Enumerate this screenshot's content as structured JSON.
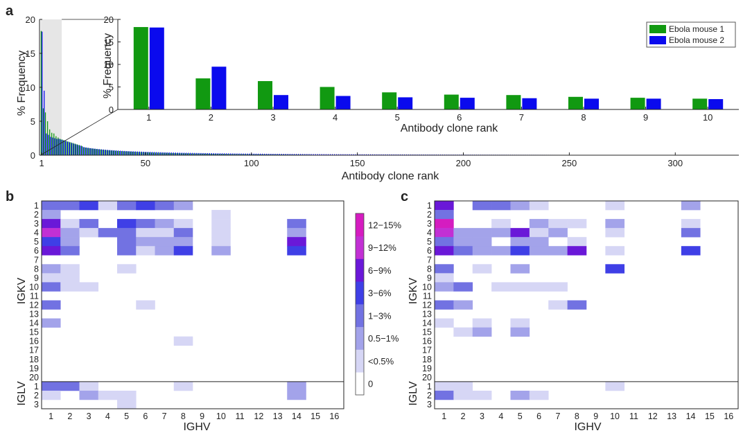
{
  "panel_labels": {
    "a": "a",
    "b": "b",
    "c": "c"
  },
  "chart_data": [
    {
      "id": "a-main",
      "type": "bar",
      "xlabel": "Antibody clone rank",
      "ylabel": "% Frequency",
      "xlim": [
        0,
        330
      ],
      "ylim": [
        0,
        20
      ],
      "xticks": [
        1,
        50,
        100,
        150,
        200,
        250,
        300
      ],
      "yticks": [
        0,
        5,
        10,
        15,
        20
      ],
      "highlight_range": [
        1,
        10
      ],
      "series": [
        {
          "name": "Ebola mouse 1",
          "color": "#119911",
          "max_rank": 128,
          "values": [
            18.3,
            6.9,
            6.3,
            5.0,
            3.8,
            3.3,
            3.2,
            2.8,
            2.6,
            2.4,
            2.3,
            2.2,
            2.1,
            2.0,
            1.9,
            1.8,
            1.7,
            1.6,
            1.5,
            1.4
          ]
        },
        {
          "name": "Ebola mouse 2",
          "color": "#0a0aee",
          "max_rank": 320,
          "values": [
            18.2,
            9.5,
            3.2,
            3.0,
            2.7,
            2.6,
            2.5,
            2.4,
            2.4,
            2.3,
            2.2,
            2.1,
            2.0,
            1.9,
            1.8,
            1.7,
            1.6,
            1.5,
            1.4,
            1.3
          ]
        }
      ]
    },
    {
      "id": "a-inset",
      "type": "bar",
      "xlabel": "Antibody clone rank",
      "ylabel": "% Frequency",
      "categories": [
        "1",
        "2",
        "3",
        "4",
        "5",
        "6",
        "7",
        "8",
        "9",
        "10"
      ],
      "ylim": [
        0,
        20
      ],
      "yticks": [
        0,
        5,
        10,
        15,
        20
      ],
      "legend_position": "top-right",
      "series": [
        {
          "name": "Ebola mouse 1",
          "color": "#119911",
          "values": [
            18.3,
            6.9,
            6.3,
            5.0,
            3.8,
            3.3,
            3.2,
            2.8,
            2.6,
            2.4
          ]
        },
        {
          "name": "Ebola mouse 2",
          "color": "#0a0aee",
          "values": [
            18.2,
            9.5,
            3.2,
            3.0,
            2.7,
            2.6,
            2.5,
            2.4,
            2.4,
            2.3
          ]
        }
      ]
    },
    {
      "id": "b",
      "type": "heatmap",
      "xlabel": "IGHV",
      "x_categories": [
        "1",
        "2",
        "3",
        "4",
        "5",
        "6",
        "7",
        "8",
        "9",
        "10",
        "11",
        "12",
        "13",
        "14",
        "15",
        "16"
      ],
      "row_groups": [
        {
          "label": "IGKV",
          "rows": [
            "1",
            "2",
            "3",
            "4",
            "5",
            "6",
            "7",
            "8",
            "9",
            "10",
            "11",
            "12",
            "13",
            "14",
            "15",
            "16",
            "17",
            "18",
            "19",
            "20"
          ]
        },
        {
          "label": "IGLV",
          "rows": [
            "1",
            "2",
            "3"
          ]
        }
      ],
      "bins": [
        "0",
        "<0.5%",
        "0.5−1%",
        "1−3%",
        "3−6%",
        "6−9%",
        "9−12%",
        "12−15%"
      ],
      "bin_colors": [
        "#ffffff",
        "#d6d6f5",
        "#a3a3ea",
        "#7272e2",
        "#3f3fe6",
        "#6a18d8",
        "#c230d4",
        "#d51cc0"
      ],
      "cells": [
        [
          3,
          3,
          4,
          1,
          3,
          4,
          3,
          2,
          0,
          0,
          0,
          0,
          0,
          0,
          0,
          0
        ],
        [
          2,
          0,
          0,
          0,
          0,
          0,
          0,
          0,
          0,
          1,
          0,
          0,
          0,
          0,
          0,
          0
        ],
        [
          5,
          1,
          3,
          0,
          4,
          3,
          2,
          1,
          0,
          1,
          0,
          0,
          0,
          3,
          0,
          0
        ],
        [
          6,
          2,
          1,
          3,
          3,
          1,
          1,
          3,
          0,
          1,
          0,
          0,
          0,
          2,
          0,
          0
        ],
        [
          4,
          2,
          0,
          0,
          3,
          2,
          2,
          2,
          0,
          1,
          0,
          0,
          0,
          5,
          0,
          0
        ],
        [
          5,
          3,
          0,
          0,
          3,
          1,
          2,
          4,
          0,
          2,
          0,
          0,
          0,
          4,
          0,
          0
        ],
        [
          0,
          0,
          0,
          0,
          0,
          0,
          0,
          0,
          0,
          0,
          0,
          0,
          0,
          0,
          0,
          0
        ],
        [
          2,
          1,
          0,
          0,
          1,
          0,
          0,
          0,
          0,
          0,
          0,
          0,
          0,
          0,
          0,
          0
        ],
        [
          1,
          1,
          0,
          0,
          0,
          0,
          0,
          0,
          0,
          0,
          0,
          0,
          0,
          0,
          0,
          0
        ],
        [
          3,
          1,
          1,
          0,
          0,
          0,
          0,
          0,
          0,
          0,
          0,
          0,
          0,
          0,
          0,
          0
        ],
        [
          0,
          0,
          0,
          0,
          0,
          0,
          0,
          0,
          0,
          0,
          0,
          0,
          0,
          0,
          0,
          0
        ],
        [
          3,
          0,
          0,
          0,
          0,
          1,
          0,
          0,
          0,
          0,
          0,
          0,
          0,
          0,
          0,
          0
        ],
        [
          0,
          0,
          0,
          0,
          0,
          0,
          0,
          0,
          0,
          0,
          0,
          0,
          0,
          0,
          0,
          0
        ],
        [
          2,
          0,
          0,
          0,
          0,
          0,
          0,
          0,
          0,
          0,
          0,
          0,
          0,
          0,
          0,
          0
        ],
        [
          0,
          0,
          0,
          0,
          0,
          0,
          0,
          0,
          0,
          0,
          0,
          0,
          0,
          0,
          0,
          0
        ],
        [
          0,
          0,
          0,
          0,
          0,
          0,
          0,
          1,
          0,
          0,
          0,
          0,
          0,
          0,
          0,
          0
        ],
        [
          0,
          0,
          0,
          0,
          0,
          0,
          0,
          0,
          0,
          0,
          0,
          0,
          0,
          0,
          0,
          0
        ],
        [
          0,
          0,
          0,
          0,
          0,
          0,
          0,
          0,
          0,
          0,
          0,
          0,
          0,
          0,
          0,
          0
        ],
        [
          0,
          0,
          0,
          0,
          0,
          0,
          0,
          0,
          0,
          0,
          0,
          0,
          0,
          0,
          0,
          0
        ],
        [
          0,
          0,
          0,
          0,
          0,
          0,
          0,
          0,
          0,
          0,
          0,
          0,
          0,
          0,
          0,
          0
        ],
        [
          3,
          3,
          1,
          0,
          0,
          0,
          0,
          1,
          0,
          0,
          0,
          0,
          0,
          2,
          0,
          0
        ],
        [
          1,
          0,
          2,
          1,
          1,
          0,
          0,
          0,
          0,
          0,
          0,
          0,
          0,
          2,
          0,
          0
        ],
        [
          0,
          0,
          0,
          0,
          1,
          0,
          0,
          0,
          0,
          0,
          0,
          0,
          0,
          0,
          0,
          0
        ]
      ]
    },
    {
      "id": "c",
      "type": "heatmap",
      "xlabel": "IGHV",
      "x_categories": [
        "1",
        "2",
        "3",
        "4",
        "5",
        "6",
        "7",
        "8",
        "9",
        "10",
        "11",
        "12",
        "13",
        "14",
        "15",
        "16"
      ],
      "row_groups": [
        {
          "label": "IGKV",
          "rows": [
            "1",
            "2",
            "3",
            "4",
            "5",
            "6",
            "7",
            "8",
            "9",
            "10",
            "11",
            "12",
            "13",
            "14",
            "15",
            "16",
            "17",
            "18",
            "19",
            "20"
          ]
        },
        {
          "label": "IGLV",
          "rows": [
            "1",
            "2",
            "3"
          ]
        }
      ],
      "bins": [
        "0",
        "<0.5%",
        "0.5−1%",
        "1−3%",
        "3−6%",
        "6−9%",
        "9−12%",
        "12−15%"
      ],
      "bin_colors": [
        "#ffffff",
        "#d6d6f5",
        "#a3a3ea",
        "#7272e2",
        "#3f3fe6",
        "#6a18d8",
        "#c230d4",
        "#d51cc0"
      ],
      "cells": [
        [
          5,
          0,
          3,
          3,
          2,
          1,
          0,
          0,
          0,
          1,
          0,
          0,
          0,
          2,
          0,
          0
        ],
        [
          3,
          0,
          0,
          0,
          0,
          0,
          0,
          0,
          0,
          0,
          0,
          0,
          0,
          0,
          0,
          0
        ],
        [
          7,
          0,
          0,
          1,
          0,
          2,
          1,
          1,
          0,
          2,
          0,
          0,
          0,
          1,
          0,
          0
        ],
        [
          6,
          2,
          2,
          2,
          5,
          1,
          2,
          0,
          0,
          1,
          0,
          0,
          0,
          3,
          0,
          0
        ],
        [
          3,
          2,
          2,
          0,
          2,
          2,
          0,
          1,
          0,
          0,
          0,
          0,
          0,
          0,
          0,
          0
        ],
        [
          5,
          3,
          2,
          2,
          4,
          2,
          2,
          5,
          0,
          1,
          0,
          0,
          0,
          4,
          0,
          0
        ],
        [
          0,
          0,
          0,
          0,
          0,
          0,
          0,
          0,
          0,
          0,
          0,
          0,
          0,
          0,
          0,
          0
        ],
        [
          3,
          0,
          1,
          0,
          2,
          0,
          0,
          0,
          0,
          4,
          0,
          0,
          0,
          0,
          0,
          0
        ],
        [
          1,
          0,
          0,
          0,
          0,
          0,
          0,
          0,
          0,
          0,
          0,
          0,
          0,
          0,
          0,
          0
        ],
        [
          2,
          3,
          0,
          1,
          1,
          1,
          1,
          0,
          0,
          0,
          0,
          0,
          0,
          0,
          0,
          0
        ],
        [
          0,
          0,
          0,
          0,
          0,
          0,
          0,
          0,
          0,
          0,
          0,
          0,
          0,
          0,
          0,
          0
        ],
        [
          3,
          2,
          0,
          0,
          0,
          0,
          1,
          3,
          0,
          0,
          0,
          0,
          0,
          0,
          0,
          0
        ],
        [
          0,
          0,
          0,
          0,
          0,
          0,
          0,
          0,
          0,
          0,
          0,
          0,
          0,
          0,
          0,
          0
        ],
        [
          1,
          0,
          1,
          0,
          1,
          0,
          0,
          0,
          0,
          0,
          0,
          0,
          0,
          0,
          0,
          0
        ],
        [
          0,
          1,
          2,
          0,
          2,
          0,
          0,
          0,
          0,
          0,
          0,
          0,
          0,
          0,
          0,
          0
        ],
        [
          0,
          0,
          0,
          0,
          0,
          0,
          0,
          0,
          0,
          0,
          0,
          0,
          0,
          0,
          0,
          0
        ],
        [
          0,
          0,
          0,
          0,
          0,
          0,
          0,
          0,
          0,
          0,
          0,
          0,
          0,
          0,
          0,
          0
        ],
        [
          0,
          0,
          0,
          0,
          0,
          0,
          0,
          0,
          0,
          0,
          0,
          0,
          0,
          0,
          0,
          0
        ],
        [
          0,
          0,
          0,
          0,
          0,
          0,
          0,
          0,
          0,
          0,
          0,
          0,
          0,
          0,
          0,
          0
        ],
        [
          0,
          0,
          0,
          0,
          0,
          0,
          0,
          0,
          0,
          0,
          0,
          0,
          0,
          0,
          0,
          0
        ],
        [
          1,
          1,
          0,
          0,
          0,
          0,
          0,
          0,
          0,
          1,
          0,
          0,
          0,
          0,
          0,
          0
        ],
        [
          3,
          1,
          1,
          0,
          2,
          1,
          0,
          0,
          0,
          0,
          0,
          0,
          0,
          0,
          0,
          0
        ],
        [
          0,
          0,
          0,
          0,
          0,
          0,
          0,
          0,
          0,
          0,
          0,
          0,
          0,
          0,
          0,
          0
        ]
      ]
    }
  ],
  "colorbar": {
    "labels": [
      "0",
      "<0.5%",
      "0.5−1%",
      "1−3%",
      "3−6%",
      "6−9%",
      "9−12%",
      "12−15%"
    ],
    "colors": [
      "#ffffff",
      "#d6d6f5",
      "#a3a3ea",
      "#7272e2",
      "#3f3fe6",
      "#6a18d8",
      "#c230d4",
      "#d51cc0"
    ]
  }
}
